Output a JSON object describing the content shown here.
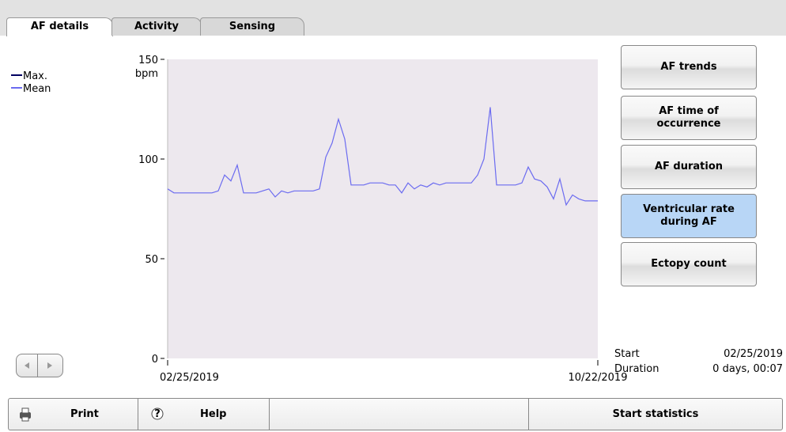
{
  "tabs": [
    "AF details",
    "Activity",
    "Sensing"
  ],
  "buttons": [
    "AF trends",
    "AF time of occurrence",
    "AF duration",
    "Ventricular rate during AF",
    "Ectopy count"
  ],
  "active_button": 3,
  "info": {
    "start_label": "Start",
    "start_value": "02/25/2019",
    "duration_label": "Duration",
    "duration_value": "0 days, 00:07"
  },
  "toolbar": {
    "print": "Print",
    "help": "Help",
    "statistics": "Start statistics"
  },
  "chart_data": {
    "type": "line",
    "y_unit": "bpm",
    "ylim": [
      0,
      150
    ],
    "yticks": [
      0,
      50,
      100,
      150
    ],
    "x_labels": [
      "02/25/2019",
      "10/22/2019"
    ],
    "legend": [
      {
        "name": "Max.",
        "color": "#000060"
      },
      {
        "name": "Mean",
        "color": "#6b6bf0"
      }
    ],
    "series": [
      {
        "name": "Mean",
        "color": "#6b6bf0",
        "values": [
          85,
          83,
          83,
          83,
          83,
          83,
          83,
          83,
          84,
          92,
          89,
          97,
          83,
          83,
          83,
          84,
          85,
          81,
          84,
          83,
          84,
          84,
          84,
          84,
          85,
          101,
          108,
          120,
          110,
          87,
          87,
          87,
          88,
          88,
          88,
          87,
          87,
          83,
          88,
          85,
          87,
          86,
          88,
          87,
          88,
          88,
          88,
          88,
          88,
          92,
          100,
          126,
          87,
          87,
          87,
          87,
          88,
          96,
          90,
          89,
          86,
          80,
          90,
          77,
          82,
          80,
          79,
          79,
          79
        ]
      }
    ]
  }
}
